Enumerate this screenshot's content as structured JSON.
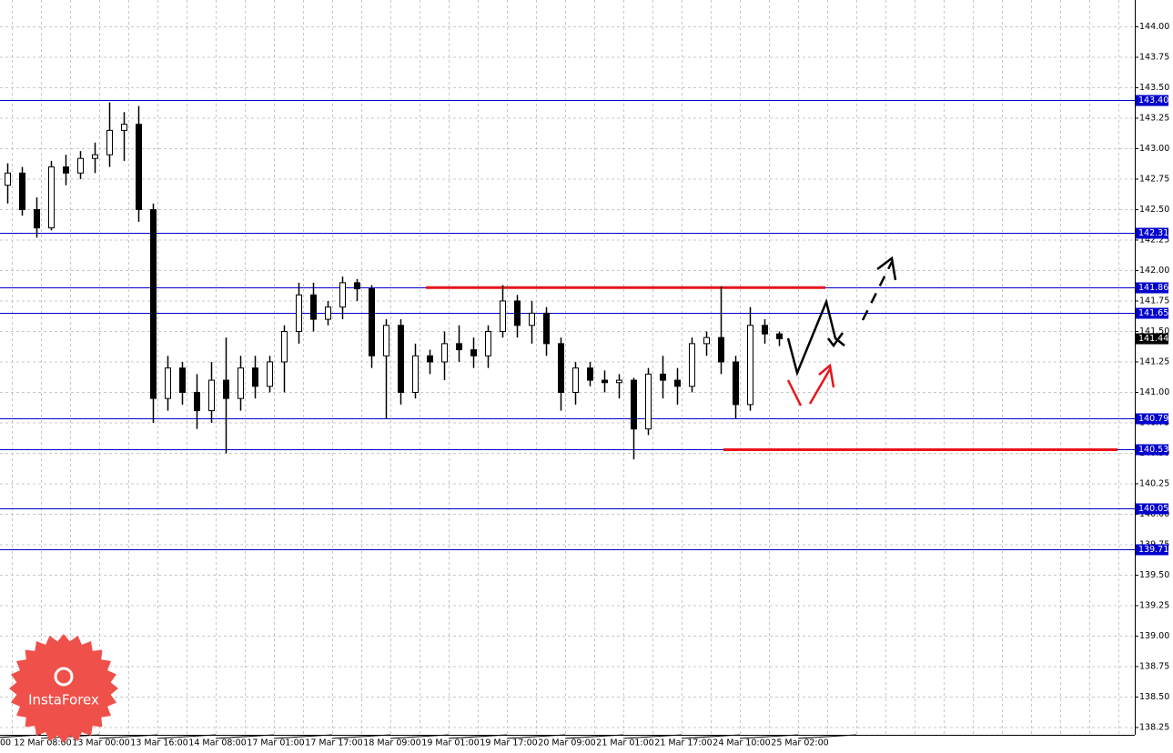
{
  "chart_data": {
    "type": "candlestick",
    "ylim": [
      138.19,
      144.22
    ],
    "yticks": [
      {
        "value": 138.25,
        "label": "138.25"
      },
      {
        "value": 138.5,
        "label": "138.50"
      },
      {
        "value": 138.75,
        "label": "138.75"
      },
      {
        "value": 139,
        "label": "139.00"
      },
      {
        "value": 139.25,
        "label": "139.25"
      },
      {
        "value": 139.5,
        "label": "139.50"
      },
      {
        "value": 139.75,
        "label": "139.75"
      },
      {
        "value": 140,
        "label": "140.00"
      },
      {
        "value": 140.25,
        "label": "140.25"
      },
      {
        "value": 140.5,
        "label": "140.50"
      },
      {
        "value": 140.75,
        "label": "140.75"
      },
      {
        "value": 141,
        "label": "141.00"
      },
      {
        "value": 141.25,
        "label": "141.25"
      },
      {
        "value": 141.5,
        "label": "141.50"
      },
      {
        "value": 141.75,
        "label": "141.75"
      },
      {
        "value": 142,
        "label": "142.00"
      },
      {
        "value": 142.25,
        "label": "142.25"
      },
      {
        "value": 142.5,
        "label": "142.50"
      },
      {
        "value": 142.75,
        "label": "142.75"
      },
      {
        "value": 143,
        "label": "143.00"
      },
      {
        "value": 143.25,
        "label": "143.25"
      },
      {
        "value": 143.5,
        "label": "143.50"
      },
      {
        "value": 143.75,
        "label": "143.75"
      },
      {
        "value": 144,
        "label": "144.00"
      }
    ],
    "grid": true,
    "candle_color": "#000000",
    "x_labels": [
      "00",
      "12 Mar 08:00",
      "13 Mar 00:00",
      "13 Mar 16:00",
      "14 Mar 08:00",
      "17 Mar 01:00",
      "17 Mar 17:00",
      "18 Mar 09:00",
      "19 Mar 01:00",
      "19 Mar 17:00",
      "20 Mar 09:00",
      "21 Mar 01:00",
      "21 Mar 17:00",
      "24 Mar 10:00",
      "25 Mar 02:00"
    ],
    "candles": {
      "open": [
        142.7,
        142.8,
        142.5,
        142.35,
        142.85,
        142.8,
        142.92,
        142.95,
        143.15,
        143.2,
        142.5,
        140.95,
        141.2,
        141.0,
        140.85,
        141.1,
        140.95,
        141.2,
        141.05,
        141.25,
        141.5,
        141.8,
        141.6,
        141.7,
        141.9,
        141.85,
        141.3,
        141.55,
        141.0,
        141.3,
        141.25,
        141.4,
        141.35,
        141.3,
        141.5,
        141.75,
        141.55,
        141.65,
        141.4,
        141.0,
        141.2,
        141.1,
        141.08,
        141.1,
        140.7,
        141.15,
        141.1,
        141.05,
        141.4,
        141.45,
        141.25,
        140.9,
        141.55,
        141.48
      ],
      "high": [
        142.88,
        142.85,
        142.6,
        142.9,
        142.95,
        142.98,
        143.05,
        143.38,
        143.3,
        143.35,
        142.55,
        141.3,
        141.25,
        141.15,
        141.25,
        141.45,
        141.3,
        141.3,
        141.3,
        141.55,
        141.9,
        141.9,
        141.75,
        141.95,
        141.93,
        141.88,
        141.6,
        141.6,
        141.4,
        141.35,
        141.5,
        141.55,
        141.45,
        141.55,
        141.88,
        141.8,
        141.75,
        141.7,
        141.45,
        141.25,
        141.25,
        141.18,
        141.15,
        141.12,
        141.2,
        141.3,
        141.2,
        141.45,
        141.5,
        141.87,
        141.3,
        141.7,
        141.6,
        141.5
      ],
      "low": [
        142.55,
        142.45,
        142.27,
        142.33,
        142.7,
        142.75,
        142.8,
        142.85,
        142.9,
        142.4,
        140.75,
        140.85,
        140.9,
        140.7,
        140.75,
        140.5,
        140.85,
        140.95,
        141.0,
        141.0,
        141.4,
        141.5,
        141.55,
        141.6,
        141.75,
        141.2,
        140.78,
        140.9,
        140.95,
        141.15,
        141.1,
        141.25,
        141.2,
        141.2,
        141.45,
        141.45,
        141.4,
        141.3,
        140.85,
        140.9,
        141.05,
        141.0,
        140.95,
        140.45,
        140.65,
        140.95,
        140.9,
        141.0,
        141.3,
        141.15,
        140.78,
        140.85,
        141.4,
        141.38
      ],
      "close": [
        142.8,
        142.5,
        142.35,
        142.85,
        142.8,
        142.92,
        142.95,
        143.15,
        143.2,
        142.5,
        140.95,
        141.2,
        141.0,
        140.85,
        141.1,
        140.95,
        141.2,
        141.05,
        141.25,
        141.5,
        141.8,
        141.6,
        141.7,
        141.9,
        141.85,
        141.3,
        141.55,
        141.0,
        141.3,
        141.25,
        141.4,
        141.35,
        141.3,
        141.5,
        141.75,
        141.55,
        141.65,
        141.4,
        141.0,
        141.2,
        141.1,
        141.08,
        141.1,
        140.7,
        141.15,
        141.1,
        141.05,
        141.4,
        141.45,
        141.25,
        140.9,
        141.55,
        141.48,
        141.44
      ]
    },
    "level_color": "#0000cc",
    "levels": [
      {
        "value": 143.4,
        "label": "143.40"
      },
      {
        "value": 142.31,
        "label": "142.31"
      },
      {
        "value": 141.86,
        "label": "141.86"
      },
      {
        "value": 141.65,
        "label": "141.65"
      },
      {
        "value": 140.79,
        "label": "140.79"
      },
      {
        "value": 140.53,
        "label": "140.53"
      },
      {
        "value": 140.05,
        "label": "140.05"
      },
      {
        "value": 139.71,
        "label": "139.71"
      }
    ],
    "current_price": {
      "value": 141.44,
      "label": "141.44"
    },
    "red_color": "#e8141b",
    "red_lines": [
      141.86,
      140.53
    ],
    "logo": "InstaForex"
  }
}
